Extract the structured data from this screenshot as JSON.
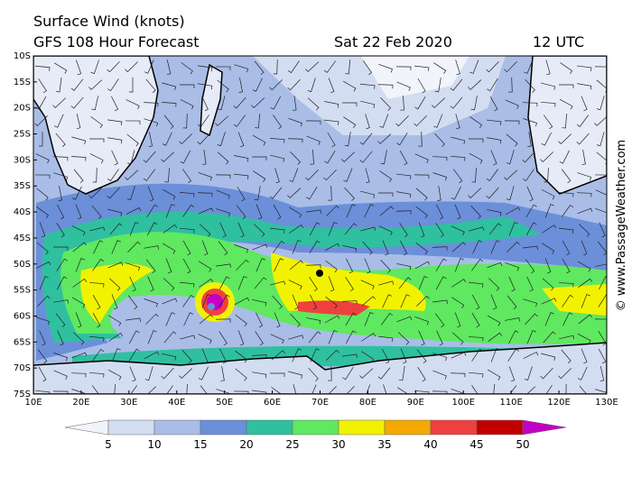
{
  "header": {
    "title": "Surface Wind (knots)",
    "subtitle": "GFS 108 Hour Forecast",
    "date": "Sat 22 Feb 2020",
    "time": "12 UTC"
  },
  "map": {
    "lat_labels": [
      "10S",
      "15S",
      "20S",
      "25S",
      "30S",
      "35S",
      "40S",
      "45S",
      "50S",
      "55S",
      "60S",
      "65S",
      "70S",
      "75S"
    ],
    "lon_labels": [
      "10E",
      "20E",
      "30E",
      "40E",
      "50E",
      "60E",
      "70E",
      "80E",
      "90E",
      "100E",
      "110E",
      "120E",
      "130E"
    ]
  },
  "credit": "© www.PassageWeather.com",
  "colorbar": {
    "labels": [
      5,
      10,
      15,
      20,
      25,
      30,
      35,
      40,
      45,
      50
    ],
    "colors": [
      "#f2f4fb",
      "#d3ddf1",
      "#a9bde7",
      "#6c8fd9",
      "#2fc0a0",
      "#5fe860",
      "#f2f200",
      "#f5a800",
      "#ef4040",
      "#c00000",
      "#c400c4"
    ]
  }
}
